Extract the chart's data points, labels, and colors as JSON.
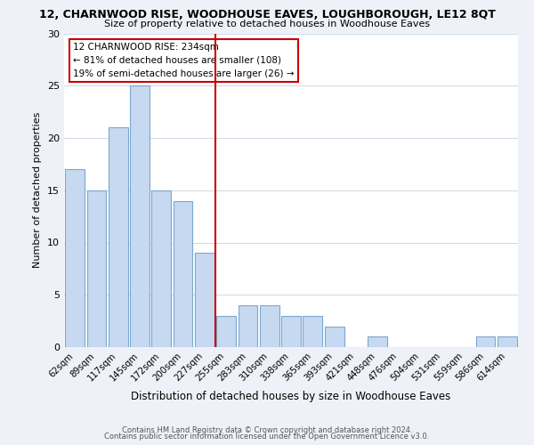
{
  "title": "12, CHARNWOOD RISE, WOODHOUSE EAVES, LOUGHBOROUGH, LE12 8QT",
  "subtitle": "Size of property relative to detached houses in Woodhouse Eaves",
  "xlabel": "Distribution of detached houses by size in Woodhouse Eaves",
  "ylabel": "Number of detached properties",
  "bar_labels": [
    "62sqm",
    "89sqm",
    "117sqm",
    "145sqm",
    "172sqm",
    "200sqm",
    "227sqm",
    "255sqm",
    "283sqm",
    "310sqm",
    "338sqm",
    "365sqm",
    "393sqm",
    "421sqm",
    "448sqm",
    "476sqm",
    "504sqm",
    "531sqm",
    "559sqm",
    "586sqm",
    "614sqm"
  ],
  "bar_heights": [
    17,
    15,
    21,
    25,
    15,
    14,
    9,
    3,
    4,
    4,
    3,
    3,
    2,
    0,
    1,
    0,
    0,
    0,
    0,
    1,
    1
  ],
  "bar_color": "#c6d9f0",
  "bar_edge_color": "#7aa8d0",
  "vline_x_idx": 6,
  "vline_color": "#cc0000",
  "annotation_title": "12 CHARNWOOD RISE: 234sqm",
  "annotation_line1": "← 81% of detached houses are smaller (108)",
  "annotation_line2": "19% of semi-detached houses are larger (26) →",
  "annotation_box_edge": "#cc0000",
  "ylim": [
    0,
    30
  ],
  "yticks": [
    0,
    5,
    10,
    15,
    20,
    25,
    30
  ],
  "footer1": "Contains HM Land Registry data © Crown copyright and database right 2024.",
  "footer2": "Contains public sector information licensed under the Open Government Licence v3.0.",
  "bg_color": "#eef2f8",
  "plot_bg_color": "#ffffff",
  "grid_color": "#d0dcea"
}
